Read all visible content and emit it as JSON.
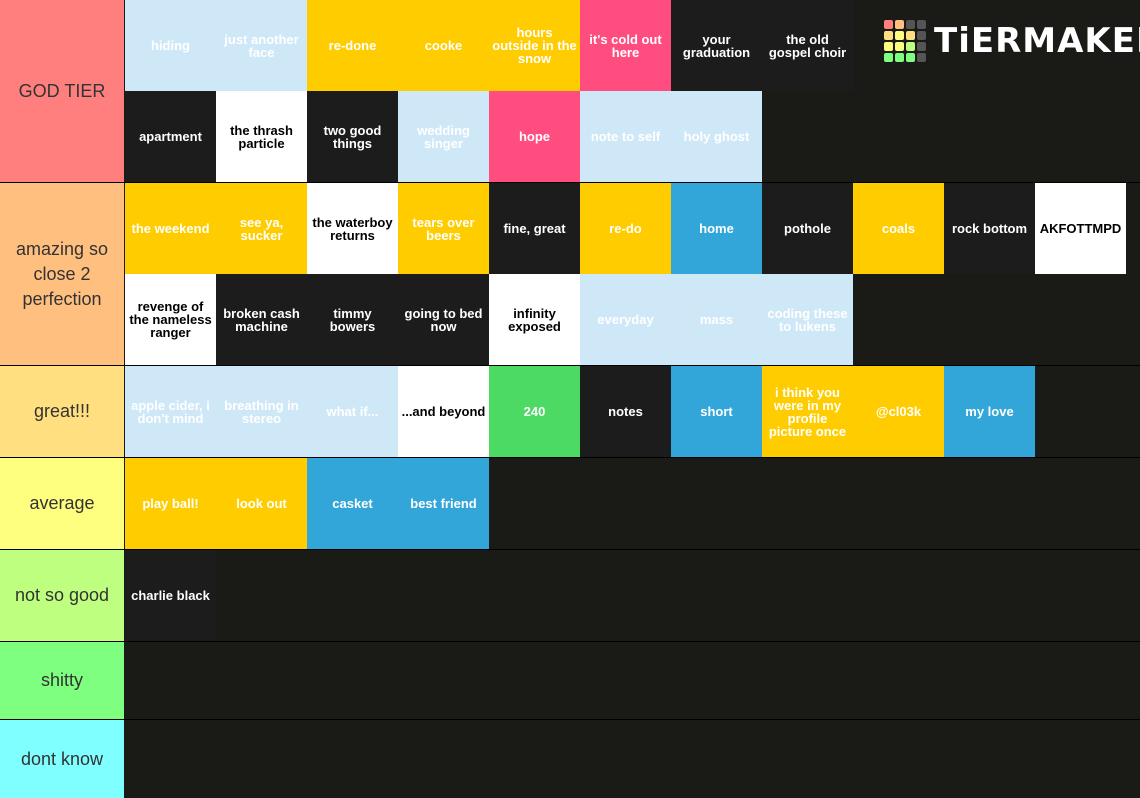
{
  "logo": "TiERMAKER",
  "tiers": [
    {
      "label": "GOD TIER",
      "color": "#ff7f7f",
      "rows": [
        [
          {
            "text": "hiding",
            "color": "#cfe8f7"
          },
          {
            "text": "just another face",
            "color": "#cfe8f7"
          },
          {
            "text": "re-done",
            "color": "#ffcc00"
          },
          {
            "text": "cooke",
            "color": "#ffcc00"
          },
          {
            "text": "hours outside in the snow",
            "color": "#ffcc00"
          },
          {
            "text": "it's cold out here",
            "color": "#ff4d80"
          },
          {
            "text": "your graduation",
            "color": "#1c1c1c"
          },
          {
            "text": "the old gospel choir",
            "color": "#1c1c1c"
          }
        ],
        [
          {
            "text": "apartment",
            "color": "#1c1c1c"
          },
          {
            "text": "the thrash particle",
            "color": "#ffffff"
          },
          {
            "text": "two good things",
            "color": "#1c1c1c"
          },
          {
            "text": "wedding singer",
            "color": "#cfe8f7"
          },
          {
            "text": "hope",
            "color": "#ff4d80"
          },
          {
            "text": "note to self",
            "color": "#cfe8f7"
          },
          {
            "text": "holy ghost",
            "color": "#cfe8f7"
          }
        ]
      ]
    },
    {
      "label": "amazing so close 2 perfection",
      "color": "#ffbf7f",
      "rows": [
        [
          {
            "text": "the weekend",
            "color": "#ffcc00"
          },
          {
            "text": "see ya, sucker",
            "color": "#ffcc00"
          },
          {
            "text": "the waterboy returns",
            "color": "#ffffff"
          },
          {
            "text": "tears over beers",
            "color": "#ffcc00"
          },
          {
            "text": "fine, great",
            "color": "#1c1c1c"
          },
          {
            "text": "re-do",
            "color": "#ffcc00"
          },
          {
            "text": "home",
            "color": "#33a6d9"
          },
          {
            "text": "pothole",
            "color": "#1c1c1c"
          },
          {
            "text": "coals",
            "color": "#ffcc00"
          },
          {
            "text": "rock bottom",
            "color": "#1c1c1c"
          },
          {
            "text": "AKFOTTMPD",
            "color": "#ffffff"
          }
        ],
        [
          {
            "text": "revenge of the nameless ranger",
            "color": "#ffffff"
          },
          {
            "text": "broken cash machine",
            "color": "#1c1c1c"
          },
          {
            "text": "timmy bowers",
            "color": "#1c1c1c"
          },
          {
            "text": "going to bed now",
            "color": "#1c1c1c"
          },
          {
            "text": "infinity exposed",
            "color": "#ffffff"
          },
          {
            "text": "everyday",
            "color": "#cfe8f7"
          },
          {
            "text": "mass",
            "color": "#cfe8f7"
          },
          {
            "text": "coding these to lukens",
            "color": "#cfe8f7"
          }
        ]
      ]
    },
    {
      "label": "great!!!",
      "color": "#ffdf7f",
      "rows": [
        [
          {
            "text": "apple cider, i don't mind",
            "color": "#cfe8f7"
          },
          {
            "text": "breathing in stereo",
            "color": "#cfe8f7"
          },
          {
            "text": "what if...",
            "color": "#cfe8f7"
          },
          {
            "text": "...and beyond",
            "color": "#ffffff"
          },
          {
            "text": "240",
            "color": "#4cd964"
          },
          {
            "text": "notes",
            "color": "#1c1c1c"
          },
          {
            "text": "short",
            "color": "#33a6d9"
          },
          {
            "text": "i think you were in my profile picture once",
            "color": "#ffcc00"
          },
          {
            "text": "@cl03k",
            "color": "#ffcc00"
          },
          {
            "text": "my love",
            "color": "#33a6d9"
          }
        ]
      ]
    },
    {
      "label": "average",
      "color": "#ffff7f",
      "rows": [
        [
          {
            "text": "play ball!",
            "color": "#ffcc00"
          },
          {
            "text": "look out",
            "color": "#ffcc00"
          },
          {
            "text": "casket",
            "color": "#33a6d9"
          },
          {
            "text": "best friend",
            "color": "#33a6d9"
          }
        ]
      ]
    },
    {
      "label": "not so good",
      "color": "#bfff7f",
      "rows": [
        [
          {
            "text": "charlie black",
            "color": "#1c1c1c"
          }
        ]
      ]
    },
    {
      "label": "shitty",
      "color": "#7fff7f",
      "rows": []
    },
    {
      "label": "dont know",
      "color": "#7fffff",
      "rows": []
    }
  ]
}
